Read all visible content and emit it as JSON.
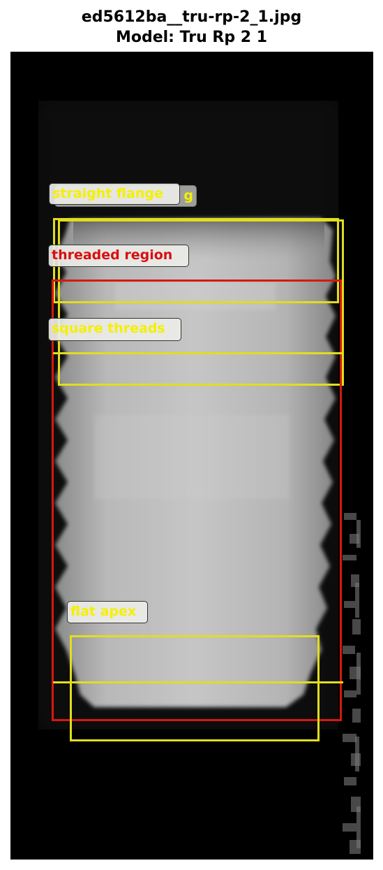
{
  "figure": {
    "title_line1": "ed5612ba__tru-rp-2_1.jpg",
    "title_line2": "Model: Tru Rp 2 1"
  },
  "colors": {
    "background": "#000000",
    "yellow_box": "#e1dd1f",
    "yellow_text": "#f5f000",
    "red_box": "#d8180f",
    "red_text": "#d80f0f"
  },
  "annotations": [
    {
      "label": "straight flange",
      "color": "yellow"
    },
    {
      "label": "g",
      "color": "yellow"
    },
    {
      "label": "threaded region",
      "color": "red"
    },
    {
      "label": "square threads",
      "color": "yellow"
    },
    {
      "label": "flat apex",
      "color": "yellow"
    }
  ]
}
